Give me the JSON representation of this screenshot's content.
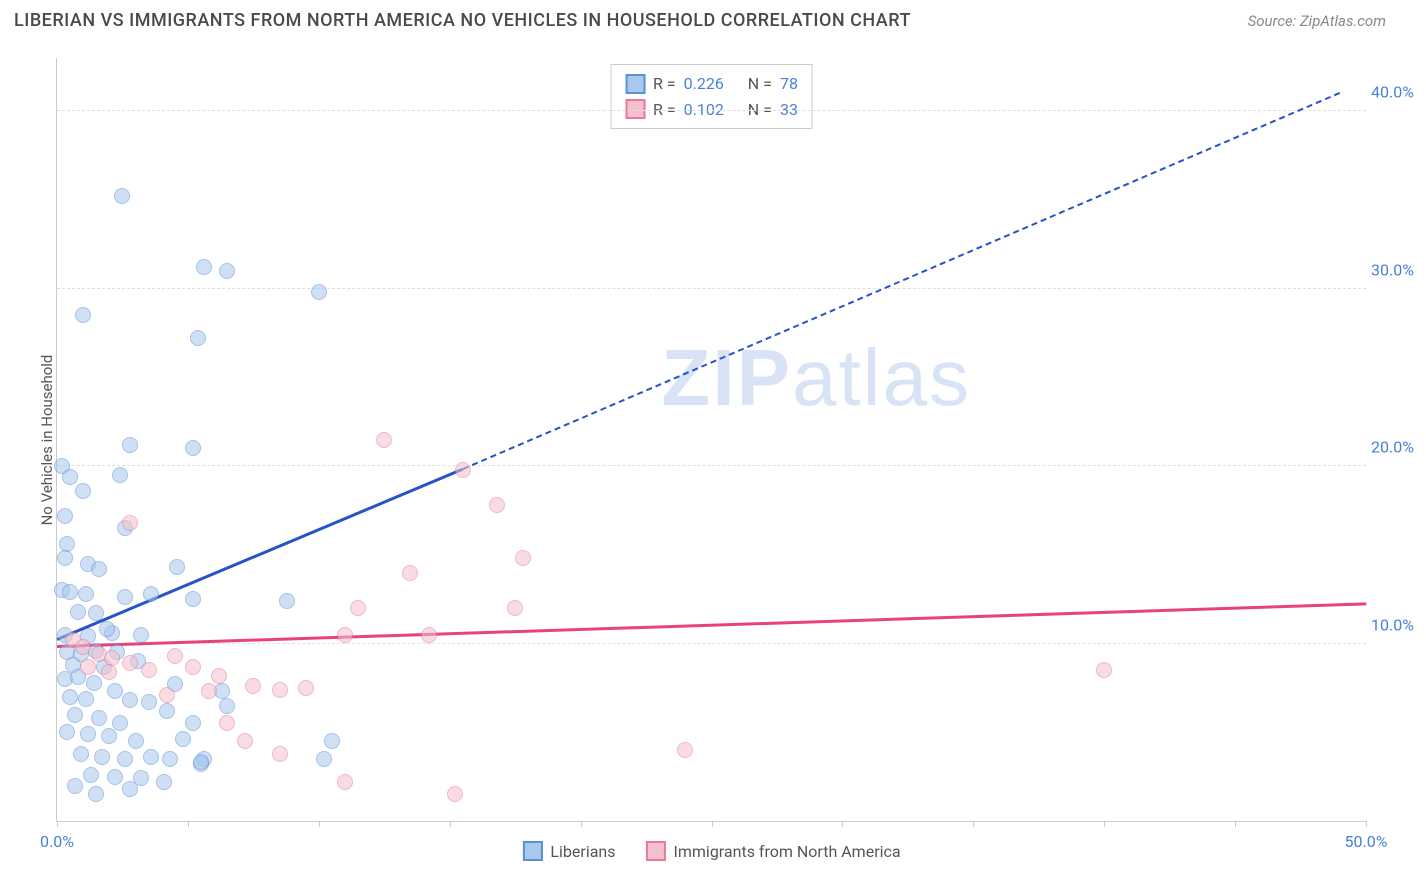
{
  "header": {
    "title": "LIBERIAN VS IMMIGRANTS FROM NORTH AMERICA NO VEHICLES IN HOUSEHOLD CORRELATION CHART",
    "source": "Source: ZipAtlas.com"
  },
  "watermark": {
    "zip": "ZIP",
    "atlas": "atlas"
  },
  "chart": {
    "type": "scatter",
    "ylabel": "No Vehicles in Household",
    "xlim": [
      0,
      50
    ],
    "ylim": [
      0,
      43
    ],
    "x_ticks": [
      0,
      5,
      10,
      15,
      20,
      25,
      30,
      35,
      40,
      45,
      50
    ],
    "x_tick_labels": {
      "0": "0.0%",
      "50": "50.0%"
    },
    "y_ticks": [
      10,
      20,
      30,
      40
    ],
    "y_tick_labels": [
      "10.0%",
      "20.0%",
      "30.0%",
      "40.0%"
    ],
    "grid_color": "#e0e0e0",
    "axis_color": "#cccccc",
    "tick_label_color": "#4a7fd8",
    "marker_radius": 8,
    "series": [
      {
        "name": "Liberians",
        "fill": "#a8c8ec",
        "stroke": "#5b8fd6",
        "fill_opacity": 0.55,
        "trend": {
          "color": "#2653c7",
          "start": [
            0,
            10.2
          ],
          "solid_end": [
            15.5,
            19.8
          ],
          "dash_end": [
            49,
            41
          ]
        },
        "stats": {
          "R": "0.226",
          "N": "78"
        },
        "points": [
          [
            2.5,
            35.2
          ],
          [
            1,
            28.5
          ],
          [
            5.6,
            31.2
          ],
          [
            6.5,
            31
          ],
          [
            10,
            29.8
          ],
          [
            5.4,
            27.2
          ],
          [
            0.2,
            20
          ],
          [
            0.5,
            19.4
          ],
          [
            2.4,
            19.5
          ],
          [
            1,
            18.6
          ],
          [
            0.3,
            17.2
          ],
          [
            2.8,
            21.2
          ],
          [
            5.2,
            21.0
          ],
          [
            0.4,
            15.6
          ],
          [
            0.3,
            14.8
          ],
          [
            1.2,
            14.5
          ],
          [
            1.6,
            14.2
          ],
          [
            2.6,
            16.5
          ],
          [
            4.6,
            14.3
          ],
          [
            0.2,
            13
          ],
          [
            0.5,
            12.9
          ],
          [
            1.1,
            12.8
          ],
          [
            2.6,
            12.6
          ],
          [
            0.8,
            11.8
          ],
          [
            1.5,
            11.7
          ],
          [
            0.3,
            10.5
          ],
          [
            1.2,
            10.4
          ],
          [
            2.1,
            10.6
          ],
          [
            3.2,
            10.5
          ],
          [
            3.6,
            12.8
          ],
          [
            5.2,
            12.5
          ],
          [
            8.8,
            12.4
          ],
          [
            0.4,
            9.5
          ],
          [
            0.9,
            9.4
          ],
          [
            1.5,
            9.6
          ],
          [
            2.3,
            9.5
          ],
          [
            3.1,
            9
          ],
          [
            0.6,
            8.8
          ],
          [
            1.8,
            8.7
          ],
          [
            0.3,
            8.0
          ],
          [
            0.8,
            8.1
          ],
          [
            1.4,
            7.8
          ],
          [
            2.2,
            7.3
          ],
          [
            0.5,
            7.0
          ],
          [
            1.1,
            6.9
          ],
          [
            2.8,
            6.8
          ],
          [
            3.5,
            6.7
          ],
          [
            4.5,
            7.7
          ],
          [
            4.2,
            6.2
          ],
          [
            5.2,
            5.5
          ],
          [
            6.5,
            6.5
          ],
          [
            0.7,
            6.0
          ],
          [
            1.6,
            5.8
          ],
          [
            2.4,
            5.5
          ],
          [
            0.4,
            5.0
          ],
          [
            1.2,
            4.9
          ],
          [
            2.0,
            4.8
          ],
          [
            3.0,
            4.5
          ],
          [
            4.8,
            4.6
          ],
          [
            0.9,
            3.8
          ],
          [
            1.7,
            3.6
          ],
          [
            2.6,
            3.5
          ],
          [
            3.6,
            3.6
          ],
          [
            4.3,
            3.5
          ],
          [
            5.6,
            3.5
          ],
          [
            10.2,
            3.5
          ],
          [
            10.5,
            4.5
          ],
          [
            1.3,
            2.6
          ],
          [
            2.2,
            2.5
          ],
          [
            3.2,
            2.4
          ],
          [
            4.1,
            2.2
          ],
          [
            0.7,
            2.0
          ],
          [
            2.8,
            1.8
          ],
          [
            1.5,
            1.5
          ],
          [
            5.5,
            3.2
          ],
          [
            5.5,
            3.3
          ],
          [
            6.3,
            7.3
          ],
          [
            1.9,
            10.8
          ]
        ]
      },
      {
        "name": "Immigrants from North America",
        "fill": "#f5c0cd",
        "stroke": "#e77a9a",
        "fill_opacity": 0.55,
        "trend": {
          "color": "#e7427a",
          "start": [
            0,
            9.8
          ],
          "solid_end": [
            50,
            12.2
          ],
          "dash_end": null
        },
        "stats": {
          "R": "0.102",
          "N": "33"
        },
        "points": [
          [
            12.5,
            21.5
          ],
          [
            15.5,
            19.8
          ],
          [
            16.8,
            17.8
          ],
          [
            17.8,
            14.8
          ],
          [
            13.5,
            14.0
          ],
          [
            2.8,
            16.8
          ],
          [
            11.5,
            12.0
          ],
          [
            11,
            10.5
          ],
          [
            14.2,
            10.5
          ],
          [
            17.5,
            12.0
          ],
          [
            24,
            4.0
          ],
          [
            40,
            8.5
          ],
          [
            0.6,
            10.2
          ],
          [
            1.0,
            9.8
          ],
          [
            1.6,
            9.4
          ],
          [
            2.1,
            9.2
          ],
          [
            2.8,
            8.9
          ],
          [
            1.2,
            8.7
          ],
          [
            2.0,
            8.4
          ],
          [
            4.5,
            9.3
          ],
          [
            3.5,
            8.5
          ],
          [
            5.2,
            8.7
          ],
          [
            6.2,
            8.2
          ],
          [
            4.2,
            7.1
          ],
          [
            5.8,
            7.3
          ],
          [
            7.5,
            7.6
          ],
          [
            8.5,
            7.4
          ],
          [
            9.5,
            7.5
          ],
          [
            6.5,
            5.5
          ],
          [
            7.2,
            4.5
          ],
          [
            8.5,
            3.8
          ],
          [
            11.0,
            2.2
          ],
          [
            15.2,
            1.5
          ]
        ]
      }
    ]
  },
  "legend_top": {
    "R_label": "R =",
    "N_label": "N ="
  },
  "legend_bottom": {
    "items": [
      "Liberians",
      "Immigrants from North America"
    ]
  }
}
